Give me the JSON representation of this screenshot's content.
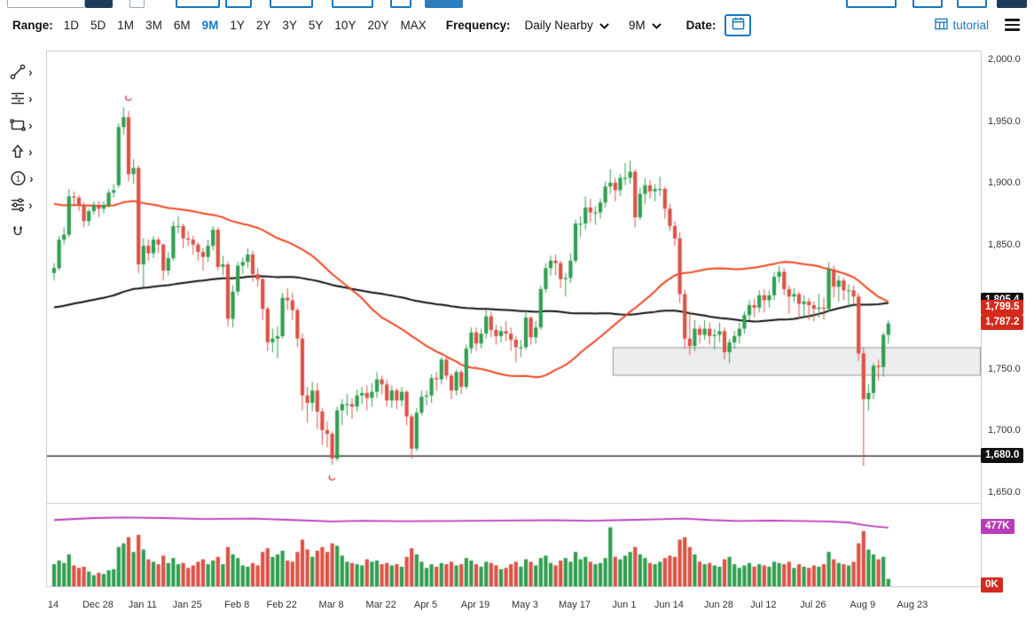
{
  "toolbar": {
    "range_label": "Range:",
    "ranges": [
      "1D",
      "5D",
      "1M",
      "3M",
      "6M",
      "9M",
      "1Y",
      "2Y",
      "3Y",
      "5Y",
      "10Y",
      "20Y",
      "MAX"
    ],
    "active_range": "9M",
    "frequency_label": "Frequency:",
    "frequency_value": "Daily Nearby",
    "period_value": "9M",
    "date_label": "Date:",
    "tutorial_label": "tutorial"
  },
  "sidebar": {
    "annotation_badge": "1"
  },
  "chart_data": {
    "type": "candlestick",
    "y_axis": {
      "min": 1650,
      "max": 2000,
      "tick_step": 50,
      "ticks": [
        {
          "value": 2000,
          "label": "2,000.0"
        },
        {
          "value": 1950,
          "label": "1,950.0"
        },
        {
          "value": 1900,
          "label": "1,900.0"
        },
        {
          "value": 1850,
          "label": "1,850.0"
        },
        {
          "value": 1800,
          "label": "1,800.0"
        },
        {
          "value": 1750,
          "label": "1,750.0"
        },
        {
          "value": 1700,
          "label": "1,700.0"
        },
        {
          "value": 1650,
          "label": "1,650.0"
        }
      ]
    },
    "x_ticks": [
      {
        "index": 0,
        "label": "14"
      },
      {
        "index": 9,
        "label": "Dec 28"
      },
      {
        "index": 18,
        "label": "Jan 11"
      },
      {
        "index": 27,
        "label": "Jan 25"
      },
      {
        "index": 37,
        "label": "Feb 8"
      },
      {
        "index": 46,
        "label": "Feb 22"
      },
      {
        "index": 56,
        "label": "Mar 8"
      },
      {
        "index": 66,
        "label": "Mar 22"
      },
      {
        "index": 75,
        "label": "Apr 5"
      },
      {
        "index": 85,
        "label": "Apr 19"
      },
      {
        "index": 95,
        "label": "May 3"
      },
      {
        "index": 105,
        "label": "May 17"
      },
      {
        "index": 115,
        "label": "Jun 1"
      },
      {
        "index": 124,
        "label": "Jun 14"
      },
      {
        "index": 134,
        "label": "Jun 28"
      },
      {
        "index": 143,
        "label": "Jul 12"
      },
      {
        "index": 153,
        "label": "Jul 26"
      },
      {
        "index": 163,
        "label": "Aug 9"
      },
      {
        "index": 173,
        "label": "Aug 23"
      }
    ],
    "candles": [
      [
        1828,
        1836,
        1822,
        1832,
        180
      ],
      [
        1832,
        1858,
        1830,
        1855,
        210
      ],
      [
        1855,
        1865,
        1851,
        1859,
        190
      ],
      [
        1859,
        1896,
        1857,
        1890,
        260
      ],
      [
        1890,
        1894,
        1882,
        1889,
        170
      ],
      [
        1889,
        1891,
        1878,
        1883,
        150
      ],
      [
        1883,
        1885,
        1865,
        1870,
        160
      ],
      [
        1870,
        1880,
        1866,
        1878,
        120
      ],
      [
        1878,
        1886,
        1875,
        1883,
        90
      ],
      [
        1883,
        1886,
        1873,
        1880,
        110
      ],
      [
        1880,
        1886,
        1876,
        1883,
        100
      ],
      [
        1883,
        1896,
        1881,
        1893,
        130
      ],
      [
        1893,
        1900,
        1889,
        1895,
        140
      ],
      [
        1899,
        1949,
        1897,
        1946,
        320
      ],
      [
        1946,
        1962,
        1940,
        1954,
        350
      ],
      [
        1954,
        1959,
        1902,
        1908,
        400
      ],
      [
        1908,
        1920,
        1900,
        1913,
        280
      ],
      [
        1913,
        1915,
        1828,
        1835,
        420
      ],
      [
        1835,
        1856,
        1817,
        1850,
        300
      ],
      [
        1850,
        1855,
        1838,
        1844,
        220
      ],
      [
        1844,
        1858,
        1840,
        1855,
        200
      ],
      [
        1855,
        1857,
        1844,
        1851,
        180
      ],
      [
        1851,
        1852,
        1822,
        1830,
        250
      ],
      [
        1830,
        1845,
        1826,
        1840,
        190
      ],
      [
        1840,
        1870,
        1838,
        1866,
        230
      ],
      [
        1866,
        1874,
        1860,
        1866,
        180
      ],
      [
        1866,
        1868,
        1848,
        1856,
        190
      ],
      [
        1856,
        1862,
        1850,
        1855,
        150
      ],
      [
        1855,
        1858,
        1843,
        1851,
        170
      ],
      [
        1851,
        1853,
        1838,
        1845,
        200
      ],
      [
        1845,
        1848,
        1830,
        1841,
        220
      ],
      [
        1841,
        1855,
        1837,
        1850,
        180
      ],
      [
        1850,
        1866,
        1846,
        1863,
        210
      ],
      [
        1863,
        1865,
        1830,
        1833,
        240
      ],
      [
        1833,
        1842,
        1826,
        1835,
        180
      ],
      [
        1835,
        1837,
        1785,
        1791,
        320
      ],
      [
        1791,
        1818,
        1784,
        1813,
        260
      ],
      [
        1813,
        1837,
        1810,
        1834,
        230
      ],
      [
        1834,
        1841,
        1827,
        1837,
        170
      ],
      [
        1837,
        1848,
        1832,
        1843,
        160
      ],
      [
        1843,
        1846,
        1821,
        1827,
        190
      ],
      [
        1827,
        1832,
        1817,
        1823,
        170
      ],
      [
        1823,
        1825,
        1790,
        1799,
        280
      ],
      [
        1799,
        1801,
        1765,
        1772,
        310
      ],
      [
        1772,
        1783,
        1764,
        1775,
        240
      ],
      [
        1775,
        1785,
        1759,
        1777,
        260
      ],
      [
        1777,
        1812,
        1775,
        1808,
        290
      ],
      [
        1808,
        1816,
        1798,
        1806,
        210
      ],
      [
        1806,
        1812,
        1790,
        1798,
        200
      ],
      [
        1798,
        1800,
        1768,
        1775,
        280
      ],
      [
        1775,
        1779,
        1717,
        1729,
        380
      ],
      [
        1729,
        1736,
        1707,
        1723,
        300
      ],
      [
        1723,
        1740,
        1716,
        1733,
        240
      ],
      [
        1733,
        1739,
        1702,
        1716,
        290
      ],
      [
        1716,
        1719,
        1689,
        1701,
        320
      ],
      [
        1701,
        1708,
        1687,
        1698,
        280
      ],
      [
        1698,
        1700,
        1673,
        1678,
        350
      ],
      [
        1678,
        1720,
        1676,
        1717,
        330
      ],
      [
        1717,
        1726,
        1705,
        1722,
        250
      ],
      [
        1722,
        1730,
        1713,
        1722,
        200
      ],
      [
        1722,
        1727,
        1710,
        1720,
        190
      ],
      [
        1720,
        1734,
        1716,
        1729,
        180
      ],
      [
        1729,
        1736,
        1722,
        1731,
        170
      ],
      [
        1731,
        1737,
        1717,
        1727,
        220
      ],
      [
        1727,
        1739,
        1720,
        1732,
        200
      ],
      [
        1732,
        1748,
        1727,
        1742,
        210
      ],
      [
        1742,
        1745,
        1730,
        1738,
        180
      ],
      [
        1738,
        1742,
        1720,
        1725,
        190
      ],
      [
        1725,
        1737,
        1719,
        1733,
        170
      ],
      [
        1733,
        1735,
        1718,
        1725,
        180
      ],
      [
        1725,
        1736,
        1720,
        1732,
        160
      ],
      [
        1732,
        1733,
        1705,
        1712,
        240
      ],
      [
        1712,
        1714,
        1678,
        1686,
        310
      ],
      [
        1686,
        1719,
        1684,
        1715,
        260
      ],
      [
        1715,
        1733,
        1713,
        1728,
        200
      ],
      [
        1728,
        1733,
        1721,
        1729,
        150
      ],
      [
        1729,
        1746,
        1723,
        1743,
        180
      ],
      [
        1743,
        1748,
        1733,
        1742,
        160
      ],
      [
        1742,
        1760,
        1738,
        1758,
        190
      ],
      [
        1758,
        1760,
        1742,
        1745,
        180
      ],
      [
        1745,
        1747,
        1726,
        1733,
        200
      ],
      [
        1733,
        1750,
        1729,
        1748,
        170
      ],
      [
        1748,
        1750,
        1730,
        1736,
        180
      ],
      [
        1736,
        1770,
        1734,
        1767,
        230
      ],
      [
        1767,
        1784,
        1763,
        1780,
        210
      ],
      [
        1780,
        1784,
        1765,
        1771,
        180
      ],
      [
        1771,
        1783,
        1767,
        1779,
        160
      ],
      [
        1779,
        1798,
        1775,
        1793,
        200
      ],
      [
        1793,
        1797,
        1776,
        1782,
        190
      ],
      [
        1782,
        1786,
        1770,
        1777,
        170
      ],
      [
        1777,
        1785,
        1772,
        1781,
        140
      ],
      [
        1781,
        1789,
        1773,
        1779,
        150
      ],
      [
        1779,
        1784,
        1765,
        1774,
        180
      ],
      [
        1774,
        1777,
        1756,
        1768,
        200
      ],
      [
        1768,
        1774,
        1760,
        1768,
        160
      ],
      [
        1768,
        1798,
        1766,
        1792,
        220
      ],
      [
        1792,
        1793,
        1770,
        1776,
        200
      ],
      [
        1776,
        1789,
        1771,
        1784,
        170
      ],
      [
        1784,
        1818,
        1782,
        1815,
        230
      ],
      [
        1815,
        1836,
        1812,
        1832,
        250
      ],
      [
        1832,
        1842,
        1826,
        1838,
        190
      ],
      [
        1838,
        1843,
        1826,
        1836,
        170
      ],
      [
        1836,
        1838,
        1816,
        1823,
        210
      ],
      [
        1823,
        1828,
        1809,
        1824,
        230
      ],
      [
        1824,
        1844,
        1820,
        1838,
        200
      ],
      [
        1838,
        1871,
        1836,
        1868,
        280
      ],
      [
        1868,
        1874,
        1857,
        1868,
        220
      ],
      [
        1868,
        1890,
        1863,
        1881,
        240
      ],
      [
        1881,
        1888,
        1869,
        1877,
        200
      ],
      [
        1877,
        1882,
        1867,
        1877,
        180
      ],
      [
        1877,
        1888,
        1872,
        1885,
        190
      ],
      [
        1885,
        1902,
        1881,
        1898,
        230
      ],
      [
        1898,
        1912,
        1892,
        1901,
        480
      ],
      [
        1901,
        1905,
        1886,
        1895,
        240
      ],
      [
        1895,
        1908,
        1890,
        1905,
        220
      ],
      [
        1905,
        1917,
        1899,
        1905,
        250
      ],
      [
        1905,
        1919,
        1900,
        1910,
        280
      ],
      [
        1910,
        1912,
        1865,
        1873,
        320
      ],
      [
        1873,
        1897,
        1871,
        1892,
        260
      ],
      [
        1892,
        1905,
        1884,
        1899,
        230
      ],
      [
        1899,
        1903,
        1888,
        1894,
        190
      ],
      [
        1894,
        1900,
        1886,
        1896,
        180
      ],
      [
        1896,
        1906,
        1890,
        1896,
        200
      ],
      [
        1896,
        1898,
        1872,
        1880,
        230
      ],
      [
        1880,
        1884,
        1862,
        1866,
        250
      ],
      [
        1866,
        1870,
        1850,
        1856,
        240
      ],
      [
        1856,
        1861,
        1804,
        1811,
        380
      ],
      [
        1811,
        1815,
        1767,
        1775,
        400
      ],
      [
        1775,
        1797,
        1762,
        1769,
        320
      ],
      [
        1769,
        1790,
        1765,
        1783,
        260
      ],
      [
        1783,
        1786,
        1771,
        1778,
        200
      ],
      [
        1778,
        1790,
        1774,
        1783,
        180
      ],
      [
        1783,
        1788,
        1770,
        1777,
        190
      ],
      [
        1777,
        1783,
        1766,
        1778,
        170
      ],
      [
        1778,
        1788,
        1772,
        1781,
        160
      ],
      [
        1781,
        1784,
        1758,
        1764,
        220
      ],
      [
        1764,
        1775,
        1755,
        1772,
        240
      ],
      [
        1772,
        1781,
        1767,
        1777,
        180
      ],
      [
        1777,
        1788,
        1771,
        1783,
        150
      ],
      [
        1783,
        1797,
        1779,
        1794,
        170
      ],
      [
        1794,
        1806,
        1790,
        1802,
        190
      ],
      [
        1802,
        1807,
        1792,
        1800,
        160
      ],
      [
        1800,
        1814,
        1796,
        1810,
        180
      ],
      [
        1810,
        1815,
        1796,
        1806,
        170
      ],
      [
        1806,
        1814,
        1800,
        1810,
        160
      ],
      [
        1810,
        1829,
        1806,
        1825,
        200
      ],
      [
        1825,
        1834,
        1820,
        1829,
        190
      ],
      [
        1829,
        1832,
        1810,
        1815,
        180
      ],
      [
        1815,
        1818,
        1795,
        1809,
        200
      ],
      [
        1809,
        1816,
        1804,
        1811,
        150
      ],
      [
        1811,
        1813,
        1791,
        1803,
        180
      ],
      [
        1803,
        1810,
        1793,
        1805,
        160
      ],
      [
        1805,
        1808,
        1790,
        1802,
        150
      ],
      [
        1802,
        1805,
        1789,
        1799,
        170
      ],
      [
        1799,
        1811,
        1792,
        1800,
        160
      ],
      [
        1800,
        1808,
        1790,
        1799,
        180
      ],
      [
        1799,
        1837,
        1797,
        1831,
        280
      ],
      [
        1831,
        1834,
        1808,
        1817,
        220
      ],
      [
        1817,
        1826,
        1805,
        1822,
        190
      ],
      [
        1822,
        1824,
        1806,
        1814,
        180
      ],
      [
        1814,
        1819,
        1800,
        1814,
        170
      ],
      [
        1814,
        1818,
        1802,
        1809,
        200
      ],
      [
        1809,
        1812,
        1757,
        1763,
        350
      ],
      [
        1763,
        1768,
        1672,
        1726,
        450
      ],
      [
        1726,
        1738,
        1717,
        1731,
        300
      ],
      [
        1731,
        1755,
        1726,
        1753,
        260
      ],
      [
        1753,
        1758,
        1741,
        1752,
        220
      ],
      [
        1752,
        1780,
        1744,
        1778,
        240
      ],
      [
        1778,
        1790,
        1771,
        1787.2,
        60
      ]
    ],
    "volume_axis": {
      "max": 650,
      "unit": "K"
    },
    "open_interest": {
      "points": [
        [
          0,
          540
        ],
        [
          8,
          556
        ],
        [
          14,
          560
        ],
        [
          22,
          556
        ],
        [
          30,
          548
        ],
        [
          40,
          552
        ],
        [
          48,
          540
        ],
        [
          56,
          528
        ],
        [
          62,
          534
        ],
        [
          70,
          530
        ],
        [
          80,
          532
        ],
        [
          90,
          535
        ],
        [
          100,
          538
        ],
        [
          108,
          534
        ],
        [
          115,
          540
        ],
        [
          122,
          546
        ],
        [
          127,
          552
        ],
        [
          132,
          540
        ],
        [
          138,
          532
        ],
        [
          144,
          536
        ],
        [
          150,
          532
        ],
        [
          156,
          528
        ],
        [
          160,
          520
        ],
        [
          163,
          500
        ],
        [
          165,
          488
        ],
        [
          168,
          477
        ]
      ]
    },
    "moving_averages": [
      {
        "name": "slow",
        "window": 100,
        "seed": 1800,
        "color": "#111111"
      },
      {
        "name": "fast",
        "window": 50,
        "seed": 1885,
        "color": "#f1461f"
      }
    ],
    "support_line_price": 1680,
    "zone": {
      "start_index": 113,
      "top_price": 1768,
      "bottom_price": 1745
    },
    "annotations": [
      {
        "index": 15,
        "price": 1970
      },
      {
        "index": 56,
        "price": 1663
      }
    ],
    "colors": {
      "up": "#2f9e4f",
      "down": "#dd5145",
      "open_interest": "#b83cb8",
      "zone_fill": "rgba(0,0,0,0.07)",
      "zone_border": "#999999",
      "support_line": "#111111",
      "annotation": "#e03131"
    },
    "price_badges": [
      {
        "text": "1,805.4",
        "price": 1805.4,
        "bg": "#111111"
      },
      {
        "text": "1,799.5",
        "price": 1799.5,
        "bg": "#d42a1e"
      },
      {
        "text": "1,787.2",
        "price": 1787.2,
        "bg": "#d42a1e"
      },
      {
        "text": "1,680.0",
        "price": 1680,
        "bg": "#111111"
      }
    ],
    "volume_badges": [
      {
        "text": "477K",
        "value": 477,
        "bg": "#b83cb8"
      },
      {
        "text": "0K",
        "value": 0,
        "bg": "#d42a1e"
      }
    ]
  }
}
